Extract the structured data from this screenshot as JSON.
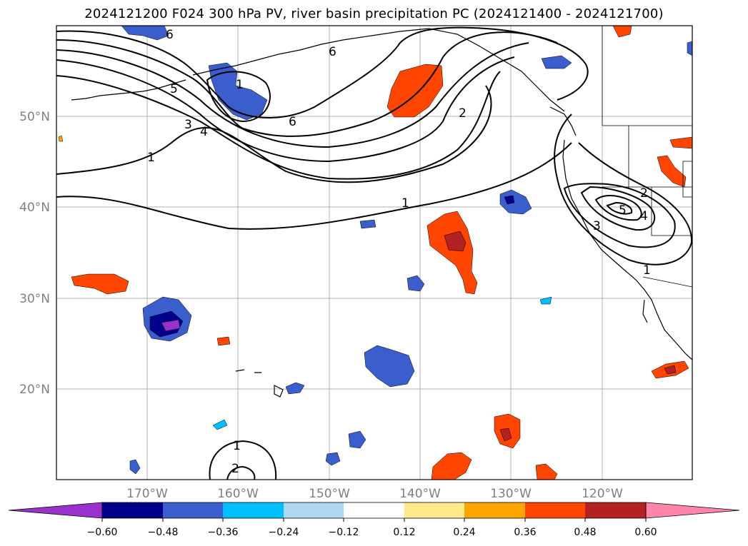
{
  "title": "2024121200 F024 300 hPa PV, river basin precipitation PC (2024121400 - 2024121700)",
  "map": {
    "lon_labels": [
      "170°W",
      "160°W",
      "150°W",
      "140°W",
      "130°W",
      "120°W"
    ],
    "lat_labels": [
      "50°N",
      "40°N",
      "30°N",
      "20°N"
    ],
    "pv_contour_labels": [
      "6",
      "6",
      "6",
      "5",
      "4",
      "3",
      "2",
      "1",
      "1",
      "1",
      "2",
      "3",
      "4",
      "5",
      "1",
      "2",
      "1"
    ]
  },
  "colorbar": {
    "tick_labels": [
      "−0.60",
      "−0.48",
      "−0.36",
      "−0.24",
      "−0.12",
      "0.12",
      "0.24",
      "0.36",
      "0.48",
      "0.60"
    ],
    "colors": {
      "below": "#9932CC",
      "bins": [
        "#00008B",
        "#3A5FCD",
        "#00BFFF",
        "#ADD8F0",
        "#FFFFFF",
        "#FFE98C",
        "#FFA500",
        "#FF4500",
        "#B22222"
      ],
      "above": "#FF86AA"
    }
  },
  "legend_colors": {
    "neg_060": "#9932CC",
    "neg_048": "#00008B",
    "neg_036": "#3A5FCD",
    "neg_024": "#00BFFF",
    "neg_012": "#ADD8F0",
    "pos_012": "#FFE98C",
    "pos_024": "#FFA500",
    "pos_036": "#FF4500",
    "pos_048": "#B22222",
    "pos_060": "#FF86AA"
  }
}
